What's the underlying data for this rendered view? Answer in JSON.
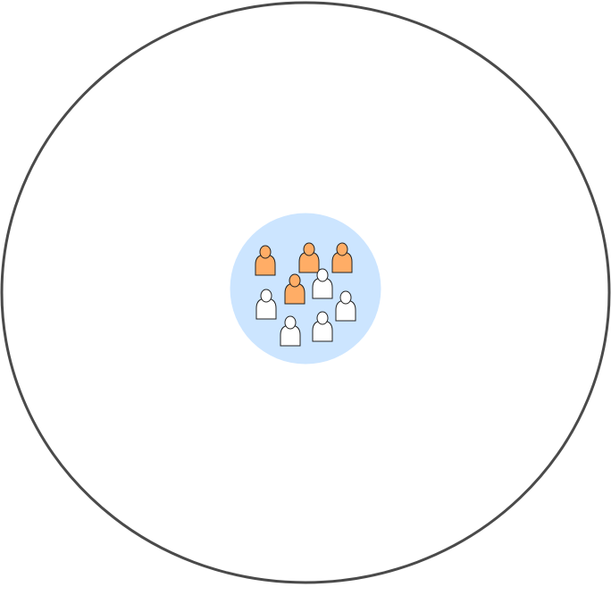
{
  "colors": {
    "outer_ring_stroke": "#4a4a4a",
    "outer_ring_fill": "#ffffff",
    "inner_circle_fill": "#cce5ff",
    "person_highlight_fill": "#ffad66",
    "person_default_fill": "#ffffff",
    "person_stroke": "#222222"
  },
  "people": [
    {
      "id": "person-1",
      "highlighted": true,
      "icon": "person-icon"
    },
    {
      "id": "person-2",
      "highlighted": true,
      "icon": "person-icon"
    },
    {
      "id": "person-3",
      "highlighted": true,
      "icon": "person-icon"
    },
    {
      "id": "person-4",
      "highlighted": true,
      "icon": "person-icon"
    },
    {
      "id": "person-5",
      "highlighted": false,
      "icon": "person-icon"
    },
    {
      "id": "person-6",
      "highlighted": false,
      "icon": "person-icon"
    },
    {
      "id": "person-7",
      "highlighted": false,
      "icon": "person-icon"
    },
    {
      "id": "person-8",
      "highlighted": false,
      "icon": "person-icon"
    },
    {
      "id": "person-9",
      "highlighted": false,
      "icon": "person-icon"
    }
  ]
}
